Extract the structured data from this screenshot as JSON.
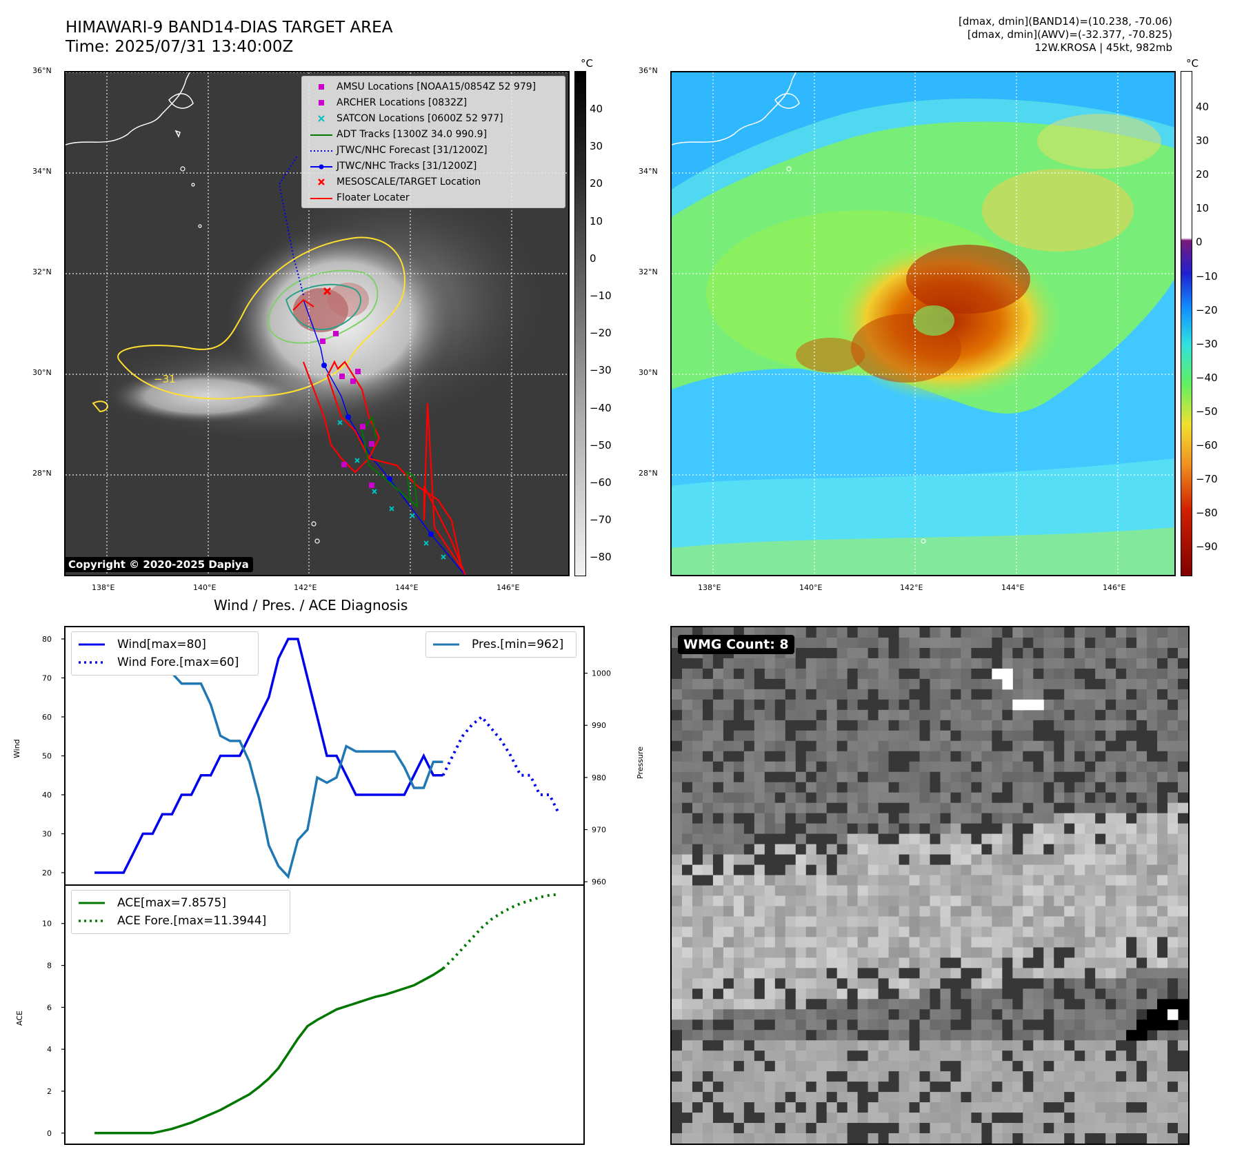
{
  "header": {
    "title_line1": "HIMAWARI-9 BAND14-DIAS TARGET AREA",
    "title_line2": "Time: 2025/07/31 13:40:00Z",
    "info_line1": "[dmax, dmin](BAND14)=(10.238, -70.06)",
    "info_line2": "[dmax, dmin](AWV)=(-32.377, -70.825)",
    "info_line3": "12W.KROSA | 45kt, 982mb"
  },
  "colors": {
    "wind": "#0000ee",
    "pressure": "#1f77b4",
    "ace": "#007700",
    "track_red": "#ff0000",
    "amsu": "#cc00cc",
    "satcon": "#00c0c0"
  },
  "maps": {
    "lat_ticks": [
      "36°N",
      "34°N",
      "32°N",
      "30°N",
      "28°N"
    ],
    "lon_ticks": [
      "138°E",
      "140°E",
      "142°E",
      "144°E",
      "146°E"
    ],
    "ir_colorbar": {
      "unit": "°C",
      "ticks": [
        "40",
        "30",
        "20",
        "10",
        "0",
        "−10",
        "−20",
        "−30",
        "−40",
        "−50",
        "−60",
        "−70",
        "−80"
      ]
    },
    "awv_colorbar": {
      "unit": "°C",
      "ticks": [
        "40",
        "30",
        "20",
        "10",
        "0",
        "−10",
        "−20",
        "−30",
        "−40",
        "−50",
        "−60",
        "−70",
        "−80",
        "−90"
      ]
    },
    "legend": [
      {
        "label": "AMSU Locations [NOAA15/0854Z 52 979]",
        "symbol": "square",
        "color": "#cc00cc"
      },
      {
        "label": "ARCHER Locations [0832Z]",
        "symbol": "square",
        "color": "#cc00cc"
      },
      {
        "label": "SATCON Locations [0600Z 52 977]",
        "symbol": "x",
        "color": "#00c0c0"
      },
      {
        "label": "ADT Tracks [1300Z 34.0 990.9]",
        "symbol": "line",
        "color": "#007700"
      },
      {
        "label": "JTWC/NHC Forecast [31/1200Z]",
        "symbol": "dotted",
        "color": "#0000ee"
      },
      {
        "label": "JTWC/NHC Tracks [31/1200Z]",
        "symbol": "line-dot",
        "color": "#0000ee"
      },
      {
        "label": "MESOSCALE/TARGET Location",
        "symbol": "x",
        "color": "#ff0000"
      },
      {
        "label": "Floater Locater",
        "symbol": "line",
        "color": "#ff0000"
      }
    ],
    "contour_label": "−31",
    "copyright": "Copyright © 2020-2025 Dapiya"
  },
  "chart_data": [
    {
      "type": "line",
      "title": "Wind / Pres. / ACE Diagnosis",
      "ylabel": "Wind",
      "ylim": [
        17,
        83
      ],
      "yticks": [
        "20",
        "30",
        "40",
        "50",
        "60",
        "70",
        "80"
      ],
      "y2label": "Pressure",
      "y2lim": [
        959.5,
        1008.8
      ],
      "y2ticks": [
        "960",
        "970",
        "980",
        "990",
        "1000"
      ],
      "xlim": [
        -3,
        50.5
      ],
      "series": [
        {
          "name": "Wind[max=80]",
          "axis": "left",
          "style": "solid",
          "x": [
            0,
            1,
            2,
            3,
            4,
            5,
            6,
            7,
            8,
            9,
            10,
            11,
            12,
            13,
            14,
            15,
            16,
            17,
            18,
            19,
            20,
            21,
            22,
            23,
            24,
            25,
            26,
            27,
            28,
            29,
            30,
            31,
            32,
            33,
            34,
            35,
            36
          ],
          "y": [
            20,
            20,
            20,
            20,
            25,
            30,
            30,
            35,
            35,
            40,
            40,
            45,
            45,
            50,
            50,
            50,
            55,
            60,
            65,
            75,
            80,
            80,
            70,
            60,
            50,
            50,
            45,
            40,
            40,
            40,
            40,
            40,
            40,
            45,
            50,
            45,
            45
          ]
        },
        {
          "name": "Wind Fore.[max=60]",
          "axis": "left",
          "style": "dotted",
          "x": [
            36,
            37,
            38,
            39,
            40,
            41,
            42,
            43,
            44,
            45,
            46,
            47,
            48
          ],
          "y": [
            45,
            50,
            55,
            58,
            60,
            57,
            54,
            50,
            45,
            45,
            40,
            40,
            35
          ]
        },
        {
          "name": "Pres.[min=962]",
          "axis": "right",
          "style": "solid",
          "x": [
            0,
            1,
            2,
            3,
            4,
            5,
            6,
            7,
            8,
            9,
            10,
            11,
            12,
            13,
            14,
            15,
            16,
            17,
            18,
            19,
            20,
            21,
            22,
            23,
            24,
            25,
            26,
            27,
            28,
            29,
            30,
            31,
            32,
            33,
            34,
            35,
            36
          ],
          "y": [
            1007,
            1007,
            1007,
            1005,
            1005,
            1004,
            1004,
            1000,
            1000,
            998,
            998,
            998,
            994,
            988,
            987,
            987,
            983,
            976,
            967,
            963,
            961,
            968,
            970,
            980,
            979,
            980,
            986,
            985,
            985,
            985,
            985,
            985,
            982,
            978,
            978,
            983,
            983
          ]
        }
      ]
    },
    {
      "type": "line",
      "ylabel": "ACE",
      "ylim": [
        -0.5,
        11.8
      ],
      "yticks": [
        "0",
        "2",
        "4",
        "6",
        "8",
        "10"
      ],
      "xlim": [
        -3,
        50.5
      ],
      "series": [
        {
          "name": "ACE[max=7.8575]",
          "style": "solid",
          "x": [
            0,
            1,
            2,
            3,
            4,
            5,
            6,
            7,
            8,
            9,
            10,
            11,
            12,
            13,
            14,
            15,
            16,
            17,
            18,
            19,
            20,
            21,
            22,
            23,
            24,
            25,
            26,
            27,
            28,
            29,
            30,
            31,
            32,
            33,
            34,
            35,
            36
          ],
          "y": [
            0,
            0,
            0,
            0,
            0,
            0,
            0,
            0.1,
            0.2,
            0.35,
            0.5,
            0.7,
            0.9,
            1.1,
            1.35,
            1.6,
            1.85,
            2.2,
            2.6,
            3.1,
            3.8,
            4.5,
            5.1,
            5.4,
            5.65,
            5.9,
            6.05,
            6.2,
            6.35,
            6.5,
            6.6,
            6.75,
            6.9,
            7.05,
            7.3,
            7.55,
            7.85
          ]
        },
        {
          "name": "ACE Fore.[max=11.3944]",
          "style": "dotted",
          "x": [
            36,
            37,
            38,
            39,
            40,
            41,
            42,
            43,
            44,
            45,
            46,
            47,
            48
          ],
          "y": [
            7.85,
            8.3,
            8.8,
            9.3,
            9.8,
            10.2,
            10.5,
            10.75,
            10.95,
            11.1,
            11.25,
            11.35,
            11.39
          ]
        }
      ]
    }
  ],
  "wmg": {
    "label": "WMG Count: 8"
  }
}
